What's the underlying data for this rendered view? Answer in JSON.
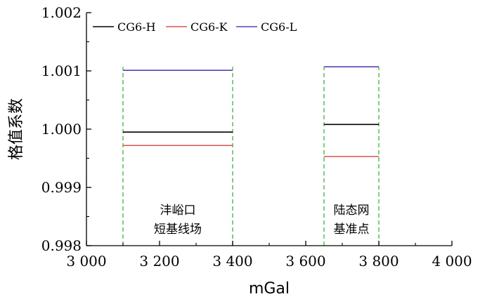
{
  "chart_data": {
    "type": "line",
    "title": "",
    "xlabel": "mGal",
    "ylabel": "格值系数",
    "xlim": [
      3000,
      4000
    ],
    "ylim": [
      0.998,
      1.002
    ],
    "x_ticks": [
      3000,
      3200,
      3400,
      3600,
      3800,
      4000
    ],
    "x_tick_labels": [
      "3 000",
      "3 200",
      "3 400",
      "3 600",
      "3 800",
      "4 000"
    ],
    "y_ticks": [
      0.998,
      0.999,
      1.0,
      1.001,
      1.002
    ],
    "y_tick_labels": [
      "0.998",
      "0.999",
      "1.000",
      "1.001",
      "1.002"
    ],
    "grid": false,
    "legend_position": "top-left",
    "series": [
      {
        "name": "CG6-H",
        "color": "#000000",
        "segments": [
          {
            "x": [
              3100,
              3400
            ],
            "y": [
              0.99995,
              0.99995
            ]
          },
          {
            "x": [
              3650,
              3800
            ],
            "y": [
              1.00008,
              1.00008
            ]
          }
        ]
      },
      {
        "name": "CG6-K",
        "color": "#d9534f",
        "segments": [
          {
            "x": [
              3100,
              3400
            ],
            "y": [
              0.99972,
              0.99972
            ]
          },
          {
            "x": [
              3650,
              3800
            ],
            "y": [
              0.99953,
              0.99953
            ]
          }
        ]
      },
      {
        "name": "CG6-L",
        "color": "#5a3fb5",
        "segments": [
          {
            "x": [
              3100,
              3400
            ],
            "y": [
              1.00101,
              1.00101
            ]
          },
          {
            "x": [
              3650,
              3800
            ],
            "y": [
              1.00107,
              1.00107
            ]
          }
        ]
      }
    ],
    "boundaries": {
      "color": "#3bb33b",
      "x": [
        3100,
        3400,
        3650,
        3800
      ]
    },
    "annotations": [
      {
        "x": 3250,
        "lines": [
          "沣峪口",
          "短基线场"
        ]
      },
      {
        "x": 3725,
        "lines": [
          "陆态网",
          "基准点"
        ]
      }
    ]
  }
}
